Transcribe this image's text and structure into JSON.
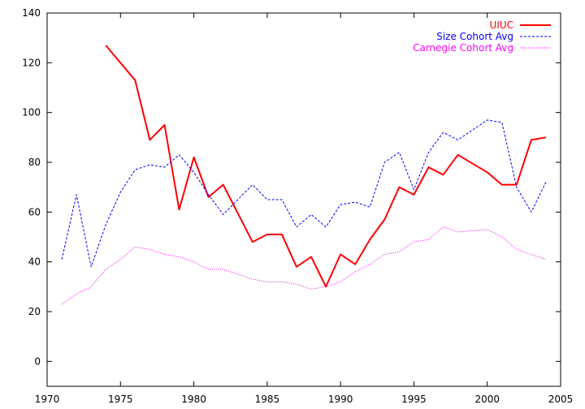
{
  "chart_data": {
    "type": "line",
    "title": "",
    "xlabel": "",
    "ylabel": "",
    "xlim": [
      1970,
      2005
    ],
    "ylim": [
      -10,
      140
    ],
    "xticks": [
      1970,
      1975,
      1980,
      1985,
      1990,
      1995,
      2000,
      2005
    ],
    "yticks": [
      0,
      20,
      40,
      60,
      80,
      100,
      120,
      140
    ],
    "grid": false,
    "legend_position": "top-right",
    "series": [
      {
        "name": "UIUC",
        "color": "#ff0000",
        "style": "solid",
        "x": [
          1974,
          1976,
          1977,
          1978,
          1979,
          1980,
          1981,
          1982,
          1984,
          1985,
          1986,
          1987,
          1988,
          1989,
          1990,
          1991,
          1992,
          1993,
          1994,
          1995,
          1996,
          1997,
          1998,
          2000,
          2001,
          2002,
          2003,
          2004
        ],
        "y": [
          127,
          113,
          89,
          95,
          61,
          82,
          66,
          71,
          48,
          51,
          51,
          38,
          42,
          30,
          43,
          39,
          49,
          57,
          70,
          67,
          78,
          75,
          83,
          76,
          71,
          71,
          89,
          90
        ]
      },
      {
        "name": "Size Cohort Avg",
        "color": "#0000ff",
        "style": "dashed",
        "x": [
          1971,
          1972,
          1973,
          1974,
          1975,
          1976,
          1977,
          1978,
          1979,
          1980,
          1981,
          1982,
          1983,
          1984,
          1985,
          1986,
          1987,
          1988,
          1989,
          1990,
          1991,
          1992,
          1993,
          1994,
          1995,
          1996,
          1997,
          1998,
          1999,
          2000,
          2001,
          2002,
          2003,
          2004
        ],
        "y": [
          41,
          67,
          38,
          55,
          68,
          77,
          79,
          78,
          83,
          76,
          67,
          59,
          65,
          71,
          65,
          65,
          54,
          59,
          54,
          63,
          64,
          62,
          80,
          84,
          69,
          84,
          92,
          89,
          93,
          97,
          96,
          70,
          60,
          72
        ]
      },
      {
        "name": "Carnegie Cohort Avg",
        "color": "#ff00ff",
        "style": "dotted",
        "x": [
          1971,
          1972,
          1973,
          1974,
          1975,
          1976,
          1977,
          1978,
          1979,
          1980,
          1981,
          1982,
          1983,
          1984,
          1985,
          1986,
          1987,
          1988,
          1989,
          1990,
          1991,
          1992,
          1993,
          1994,
          1995,
          1996,
          1997,
          1998,
          1999,
          2000,
          2001,
          2002,
          2003,
          2004
        ],
        "y": [
          23,
          27,
          30,
          37,
          41,
          46,
          45,
          43,
          42,
          40,
          37,
          37,
          35,
          33,
          32,
          32,
          31,
          29,
          30,
          32,
          36,
          39,
          43,
          44,
          48,
          49,
          54,
          52,
          52.5,
          53,
          50,
          45,
          43,
          41
        ]
      }
    ]
  }
}
